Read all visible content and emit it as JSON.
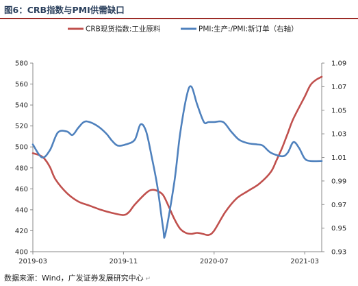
{
  "figure": {
    "title": "图6：CRB指数与PMI供需缺口",
    "source": "数据来源：Wind，广发证券发展研究中心"
  },
  "chart_data": {
    "type": "line",
    "title": "",
    "x_labels": [
      "2019-03",
      "2019-11",
      "2020-07",
      "2021-03"
    ],
    "left_axis": {
      "min": 400,
      "max": 580,
      "step": 20,
      "ticks": [
        "400",
        "420",
        "440",
        "460",
        "480",
        "500",
        "520",
        "540",
        "560",
        "580"
      ]
    },
    "right_axis": {
      "min": 0.93,
      "max": 1.09,
      "step": 0.02,
      "ticks": [
        "0.93",
        "0.95",
        "0.97",
        "0.99",
        "1.01",
        "1.03",
        "1.05",
        "1.07",
        "1.09"
      ]
    },
    "grid": false,
    "legend_position": "top",
    "series": [
      {
        "name": "CRB现货指数:工业原料",
        "axis": "left",
        "color": "#c0504d",
        "points": [
          [
            0,
            494
          ],
          [
            0.6,
            492
          ],
          [
            1,
            489
          ],
          [
            1.5,
            481
          ],
          [
            2,
            469
          ],
          [
            3,
            456
          ],
          [
            4,
            448
          ],
          [
            5,
            444
          ],
          [
            6,
            440
          ],
          [
            7,
            437
          ],
          [
            8,
            435
          ],
          [
            8.5,
            438
          ],
          [
            9,
            445
          ],
          [
            10,
            456
          ],
          [
            10.5,
            459
          ],
          [
            11,
            458
          ],
          [
            11.5,
            454
          ],
          [
            12,
            443
          ],
          [
            12.5,
            431
          ],
          [
            13,
            422
          ],
          [
            13.5,
            418
          ],
          [
            14,
            417
          ],
          [
            14.5,
            418
          ],
          [
            15,
            417
          ],
          [
            15.5,
            416
          ],
          [
            16,
            420
          ],
          [
            17,
            438
          ],
          [
            18,
            451
          ],
          [
            19,
            458
          ],
          [
            20,
            465
          ],
          [
            21,
            476
          ],
          [
            21.5,
            487
          ],
          [
            22,
            499
          ],
          [
            22.5,
            513
          ],
          [
            23,
            527
          ],
          [
            24,
            548
          ],
          [
            24.5,
            559
          ],
          [
            25,
            564
          ],
          [
            25.5,
            567
          ]
        ]
      },
      {
        "name": "PMI:生产:/PMI:新订单（右轴）",
        "axis": "right",
        "color": "#4f81bd",
        "points": [
          [
            0,
            1.021
          ],
          [
            0.8,
            1.01
          ],
          [
            1.5,
            1.016
          ],
          [
            2.2,
            1.031
          ],
          [
            3,
            1.032
          ],
          [
            3.5,
            1.029
          ],
          [
            4,
            1.035
          ],
          [
            4.5,
            1.04
          ],
          [
            5,
            1.04
          ],
          [
            5.8,
            1.036
          ],
          [
            6.5,
            1.03
          ],
          [
            7,
            1.024
          ],
          [
            7.5,
            1.02
          ],
          [
            8.2,
            1.021
          ],
          [
            9,
            1.025
          ],
          [
            9.5,
            1.038
          ],
          [
            10,
            1.032
          ],
          [
            10.5,
            1.01
          ],
          [
            11,
            0.985
          ],
          [
            11.5,
            0.95
          ],
          [
            11.7,
            0.945
          ],
          [
            12.5,
            0.99
          ],
          [
            13,
            1.03
          ],
          [
            13.6,
            1.063
          ],
          [
            14,
            1.07
          ],
          [
            14.5,
            1.055
          ],
          [
            15.1,
            1.04
          ],
          [
            15.5,
            1.04
          ],
          [
            16,
            1.04
          ],
          [
            16.8,
            1.04
          ],
          [
            17.5,
            1.032
          ],
          [
            18.2,
            1.025
          ],
          [
            19,
            1.022
          ],
          [
            19.8,
            1.021
          ],
          [
            20.3,
            1.02
          ],
          [
            21,
            1.014
          ],
          [
            22,
            1.011
          ],
          [
            22.5,
            1.014
          ],
          [
            23,
            1.023
          ],
          [
            23.5,
            1.018
          ],
          [
            24,
            1.009
          ],
          [
            24.5,
            1.007
          ],
          [
            25.5,
            1.007
          ]
        ]
      }
    ]
  }
}
